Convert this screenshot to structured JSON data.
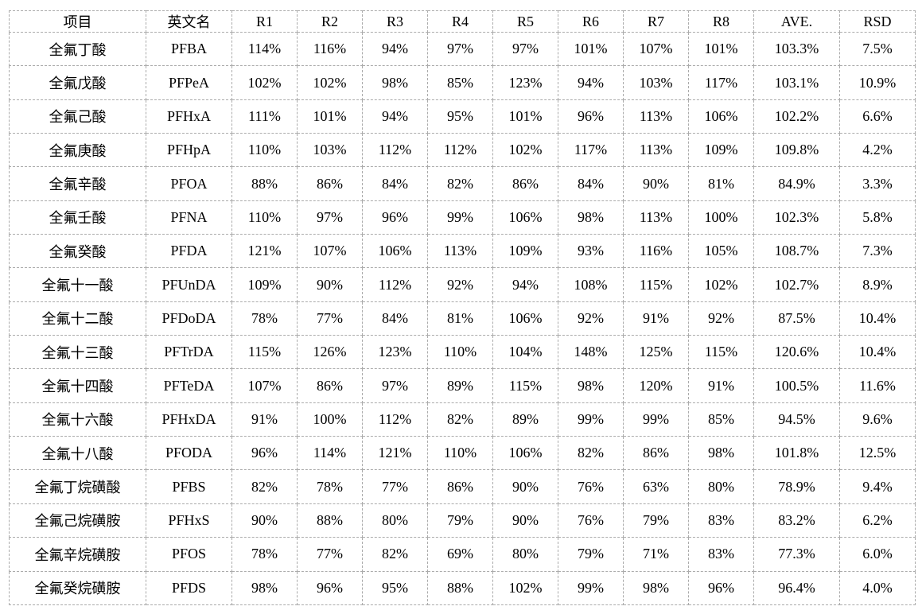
{
  "colors": {
    "grid": "#ababab",
    "text": "#000000",
    "background": "#ffffff"
  },
  "table": {
    "headers": [
      "项目",
      "英文名",
      "R1",
      "R2",
      "R3",
      "R4",
      "R5",
      "R6",
      "R7",
      "R8",
      "AVE.",
      "RSD"
    ],
    "rows": [
      [
        "全氟丁酸",
        "PFBA",
        "114%",
        "116%",
        "94%",
        "97%",
        "97%",
        "101%",
        "107%",
        "101%",
        "103.3%",
        "7.5%"
      ],
      [
        "全氟戊酸",
        "PFPeA",
        "102%",
        "102%",
        "98%",
        "85%",
        "123%",
        "94%",
        "103%",
        "117%",
        "103.1%",
        "10.9%"
      ],
      [
        "全氟己酸",
        "PFHxA",
        "111%",
        "101%",
        "94%",
        "95%",
        "101%",
        "96%",
        "113%",
        "106%",
        "102.2%",
        "6.6%"
      ],
      [
        "全氟庚酸",
        "PFHpA",
        "110%",
        "103%",
        "112%",
        "112%",
        "102%",
        "117%",
        "113%",
        "109%",
        "109.8%",
        "4.2%"
      ],
      [
        "全氟辛酸",
        "PFOA",
        "88%",
        "86%",
        "84%",
        "82%",
        "86%",
        "84%",
        "90%",
        "81%",
        "84.9%",
        "3.3%"
      ],
      [
        "全氟壬酸",
        "PFNA",
        "110%",
        "97%",
        "96%",
        "99%",
        "106%",
        "98%",
        "113%",
        "100%",
        "102.3%",
        "5.8%"
      ],
      [
        "全氟癸酸",
        "PFDA",
        "121%",
        "107%",
        "106%",
        "113%",
        "109%",
        "93%",
        "116%",
        "105%",
        "108.7%",
        "7.3%"
      ],
      [
        "全氟十一酸",
        "PFUnDA",
        "109%",
        "90%",
        "112%",
        "92%",
        "94%",
        "108%",
        "115%",
        "102%",
        "102.7%",
        "8.9%"
      ],
      [
        "全氟十二酸",
        "PFDoDA",
        "78%",
        "77%",
        "84%",
        "81%",
        "106%",
        "92%",
        "91%",
        "92%",
        "87.5%",
        "10.4%"
      ],
      [
        "全氟十三酸",
        "PFTrDA",
        "115%",
        "126%",
        "123%",
        "110%",
        "104%",
        "148%",
        "125%",
        "115%",
        "120.6%",
        "10.4%"
      ],
      [
        "全氟十四酸",
        "PFTeDA",
        "107%",
        "86%",
        "97%",
        "89%",
        "115%",
        "98%",
        "120%",
        "91%",
        "100.5%",
        "11.6%"
      ],
      [
        "全氟十六酸",
        "PFHxDA",
        "91%",
        "100%",
        "112%",
        "82%",
        "89%",
        "99%",
        "99%",
        "85%",
        "94.5%",
        "9.6%"
      ],
      [
        "全氟十八酸",
        "PFODA",
        "96%",
        "114%",
        "121%",
        "110%",
        "106%",
        "82%",
        "86%",
        "98%",
        "101.8%",
        "12.5%"
      ],
      [
        "全氟丁烷磺酸",
        "PFBS",
        "82%",
        "78%",
        "77%",
        "86%",
        "90%",
        "76%",
        "63%",
        "80%",
        "78.9%",
        "9.4%"
      ],
      [
        "全氟己烷磺胺",
        "PFHxS",
        "90%",
        "88%",
        "80%",
        "79%",
        "90%",
        "76%",
        "79%",
        "83%",
        "83.2%",
        "6.2%"
      ],
      [
        "全氟辛烷磺胺",
        "PFOS",
        "78%",
        "77%",
        "82%",
        "69%",
        "80%",
        "79%",
        "71%",
        "83%",
        "77.3%",
        "6.0%"
      ],
      [
        "全氟癸烷磺胺",
        "PFDS",
        "98%",
        "96%",
        "95%",
        "88%",
        "102%",
        "99%",
        "98%",
        "96%",
        "96.4%",
        "4.0%"
      ]
    ]
  }
}
